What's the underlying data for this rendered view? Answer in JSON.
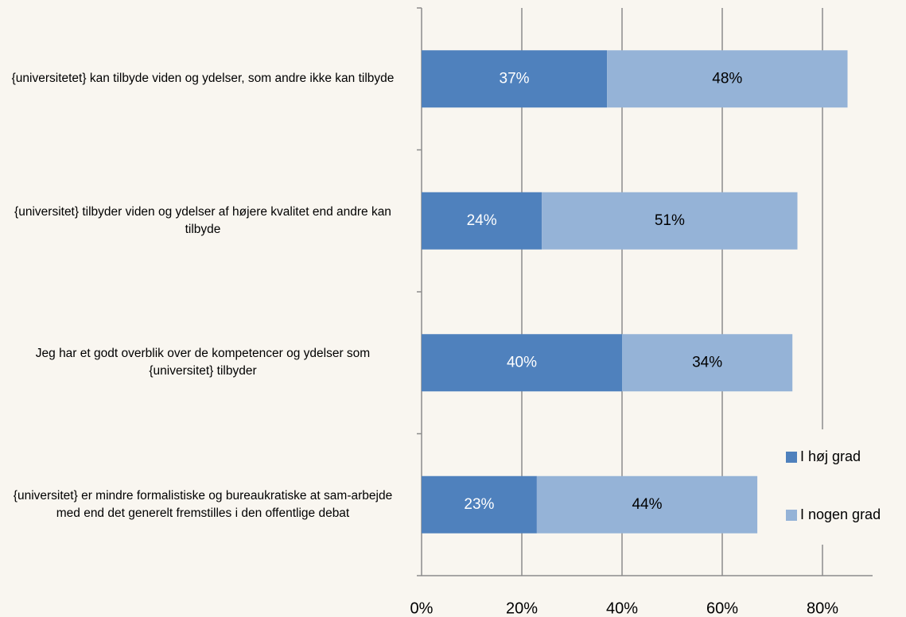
{
  "chart_data": {
    "type": "stacked-bar-horizontal",
    "categories": [
      "{universitetet} kan tilbyde viden og ydelser, som andre ikke kan tilbyde",
      "{universitet} tilbyder viden og ydelser af højere kvalitet end andre kan tilbyde",
      "Jeg har et godt overblik over de kompetencer og ydelser som {universitet} tilbyder",
      "{universitet} er mindre formalistiske og bureaukratiske at sam-arbejde med end det generelt fremstilles i den offentlige debat"
    ],
    "series": [
      {
        "name": "I høj grad",
        "color": "#4f81bd",
        "values": [
          37,
          24,
          40,
          23
        ],
        "value_labels": [
          "37%",
          "24%",
          "40%",
          "23%"
        ]
      },
      {
        "name": "I nogen grad",
        "color": "#95b3d7",
        "values": [
          48,
          51,
          34,
          44
        ],
        "value_labels": [
          "48%",
          "51%",
          "34%",
          "44%"
        ]
      }
    ],
    "xlim": [
      0,
      90
    ],
    "xticks": [
      {
        "value": 0,
        "label": "0%"
      },
      {
        "value": 20,
        "label": "20%"
      },
      {
        "value": 40,
        "label": "40%"
      },
      {
        "value": 60,
        "label": "60%"
      },
      {
        "value": 80,
        "label": "80%"
      }
    ],
    "grid": true
  }
}
